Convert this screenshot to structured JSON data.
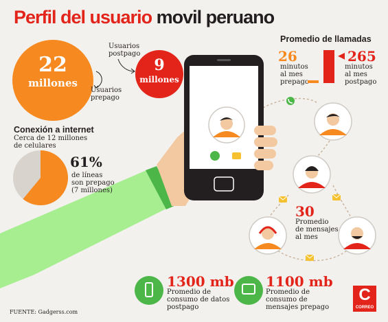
{
  "header": {
    "title_part1": "Perfil del usuario",
    "title_part2": "movil peruano"
  },
  "prepago": {
    "value": "22",
    "unit": "millones",
    "label_line1": "Usuarios",
    "label_line2": "prepago"
  },
  "postpago": {
    "value": "9",
    "unit": "millones",
    "label_line1": "Usuarios",
    "label_line2": "postpago"
  },
  "llamadas": {
    "title": "Promedio de llamadas",
    "prepago_value": "26",
    "prepago_label": [
      "minutos",
      "al mes",
      "prepago"
    ],
    "postpago_value": "265",
    "postpago_label": [
      "minutos",
      "al mes",
      "postpago"
    ]
  },
  "conexion": {
    "title": "Conexión a internet",
    "subtitle_line1": "Cerca de 12 millones",
    "subtitle_line2": "de celulares",
    "percent": "61%",
    "percent_fraction": 0.61,
    "detail": [
      "de líneas",
      "son prepago",
      "(7 millones)"
    ]
  },
  "mensajes": {
    "value": "30",
    "label": [
      "Promedio",
      "de mensajes",
      "al mes"
    ]
  },
  "datos": {
    "value": "1300 mb",
    "label": [
      "Promedio de",
      "consumo de datos",
      "postpago"
    ]
  },
  "msgs_prepago": {
    "value": "1100 mb",
    "label": [
      "Promedio de",
      "consumo de",
      "mensajes prepago"
    ]
  },
  "footer": {
    "source": "FUENTE: Gadgerss.com"
  },
  "logo": {
    "letter": "C",
    "text": "CORREO"
  },
  "colors": {
    "orange": "#f6891f",
    "red": "#e3241b",
    "green": "#4cb748",
    "sleeve": "#a6ee8f",
    "skin": "#f2c9a0"
  }
}
